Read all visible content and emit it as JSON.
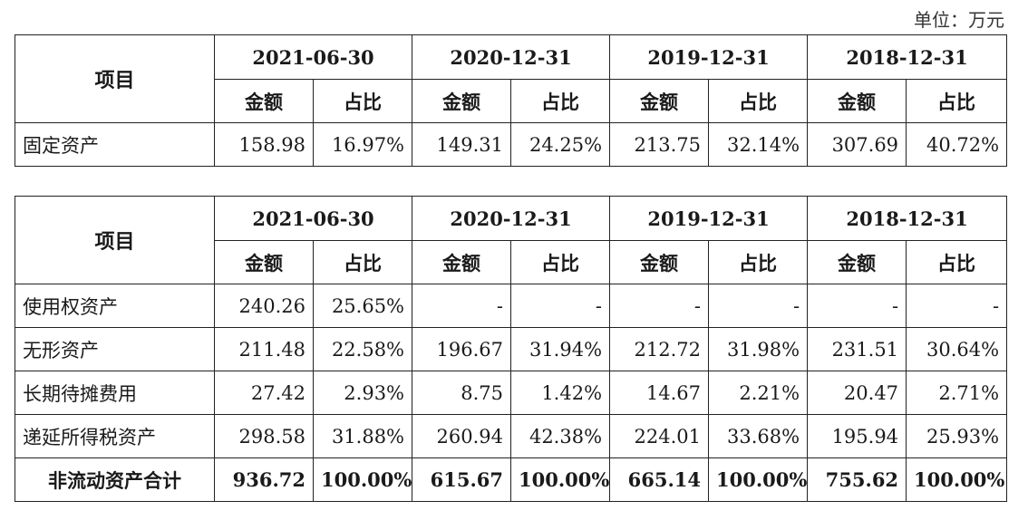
{
  "unit_label": "单位：万元",
  "table1": {
    "item_header": "项目",
    "periods": [
      "2021-06-30",
      "2020-12-31",
      "2019-12-31",
      "2018-12-31"
    ],
    "amount_header": "金额",
    "ratio_header": "占比",
    "rows": [
      {
        "label": "固定资产",
        "values": [
          "158.98",
          "16.97%",
          "149.31",
          "24.25%",
          "213.75",
          "32.14%",
          "307.69",
          "40.72%"
        ]
      }
    ]
  },
  "table2": {
    "item_header": "项目",
    "periods": [
      "2021-06-30",
      "2020-12-31",
      "2019-12-31",
      "2018-12-31"
    ],
    "amount_header": "金额",
    "ratio_header": "占比",
    "rows": [
      {
        "label": "使用权资产",
        "values": [
          "240.26",
          "25.65%",
          "-",
          "-",
          "-",
          "-",
          "-",
          "-"
        ]
      },
      {
        "label": "无形资产",
        "values": [
          "211.48",
          "22.58%",
          "196.67",
          "31.94%",
          "212.72",
          "31.98%",
          "231.51",
          "30.64%"
        ]
      },
      {
        "label": "长期待摊费用",
        "values": [
          "27.42",
          "2.93%",
          "8.75",
          "1.42%",
          "14.67",
          "2.21%",
          "20.47",
          "2.71%"
        ]
      },
      {
        "label": "递延所得税资产",
        "values": [
          "298.58",
          "31.88%",
          "260.94",
          "42.38%",
          "224.01",
          "33.68%",
          "195.94",
          "25.93%"
        ]
      }
    ],
    "total": {
      "label": "非流动资产合计",
      "values": [
        "936.72",
        "100.00%",
        "615.67",
        "100.00%",
        "665.14",
        "100.00%",
        "755.62",
        "100.00%"
      ]
    }
  }
}
